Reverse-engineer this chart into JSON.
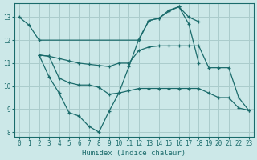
{
  "background_color": "#cce8e8",
  "grid_color": "#aacccc",
  "line_color": "#1a6b6b",
  "xlabel": "Humidex (Indice chaleur)",
  "xlim": [
    -0.5,
    23.5
  ],
  "ylim": [
    7.8,
    13.6
  ],
  "yticks": [
    8,
    9,
    10,
    11,
    12,
    13
  ],
  "xticks": [
    0,
    1,
    2,
    3,
    4,
    5,
    6,
    7,
    8,
    9,
    10,
    11,
    12,
    13,
    14,
    15,
    16,
    17,
    18,
    19,
    20,
    21,
    22,
    23
  ],
  "line1_x": [
    0,
    1,
    2,
    12,
    13,
    14,
    15,
    16,
    17,
    18
  ],
  "line1_y": [
    13.0,
    12.65,
    12.0,
    12.0,
    12.85,
    12.95,
    13.3,
    13.45,
    13.0,
    12.8
  ],
  "line2_x": [
    2,
    3,
    4,
    5,
    6,
    7,
    8,
    9,
    10,
    11,
    12,
    13,
    14,
    15,
    16,
    17,
    18
  ],
  "line2_y": [
    11.35,
    10.4,
    9.7,
    8.85,
    8.7,
    8.25,
    8.0,
    8.9,
    9.7,
    10.85,
    12.05,
    12.85,
    12.95,
    13.25,
    13.45,
    12.7,
    11.0
  ],
  "line3_x": [
    2,
    3,
    4,
    5,
    6,
    7,
    8,
    9,
    10,
    11,
    12,
    13,
    14,
    15,
    16,
    17,
    18,
    19,
    20,
    21,
    22,
    23
  ],
  "line3_y": [
    11.35,
    11.3,
    10.35,
    10.15,
    10.05,
    10.05,
    9.95,
    9.65,
    9.7,
    9.8,
    9.9,
    9.9,
    9.9,
    9.9,
    9.9,
    9.9,
    9.9,
    9.7,
    9.5,
    9.5,
    9.05,
    8.95
  ],
  "line4_x": [
    2,
    3,
    4,
    5,
    6,
    7,
    8,
    9,
    10,
    11,
    12,
    13,
    14,
    15,
    16,
    17,
    18,
    19,
    20,
    21,
    22,
    23
  ],
  "line4_y": [
    11.35,
    11.3,
    11.2,
    11.1,
    11.0,
    10.95,
    10.9,
    10.85,
    11.0,
    11.0,
    11.55,
    11.7,
    11.75,
    11.75,
    11.75,
    11.75,
    11.75,
    10.8,
    10.8,
    10.8,
    9.5,
    8.95
  ]
}
